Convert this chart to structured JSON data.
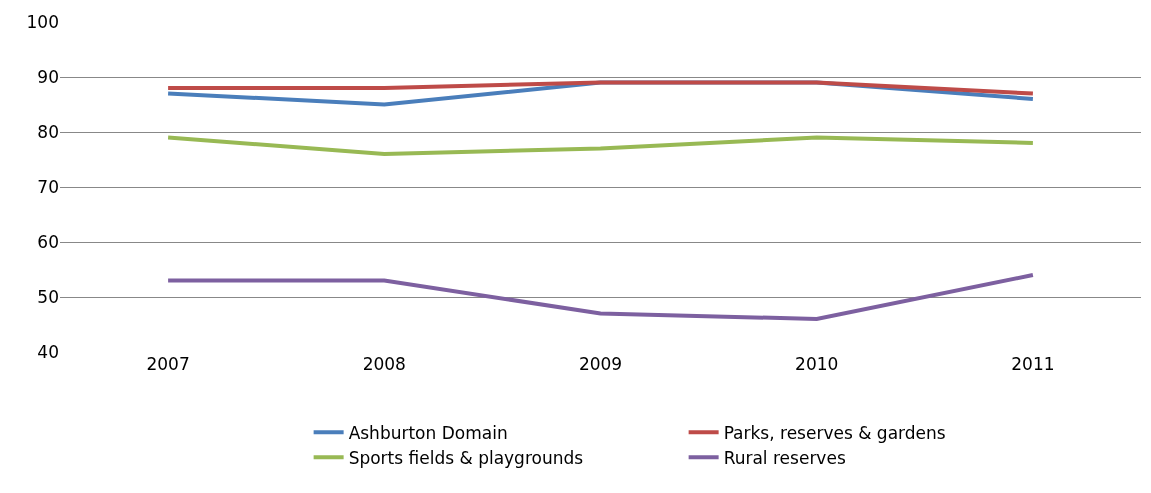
{
  "chart_data": {
    "type": "line",
    "categories": [
      "2007",
      "2008",
      "2009",
      "2010",
      "2011"
    ],
    "series": [
      {
        "name": "Ashburton Domain",
        "color": "#4a7ebb",
        "values": [
          87,
          85,
          89,
          89,
          86
        ]
      },
      {
        "name": "Parks, reserves & gardens",
        "color": "#be4b48",
        "values": [
          88,
          88,
          89,
          89,
          87
        ]
      },
      {
        "name": "Sports fields & playgrounds",
        "color": "#98b954",
        "values": [
          79,
          76,
          77,
          79,
          78
        ]
      },
      {
        "name": "Rural reserves",
        "color": "#7d60a0",
        "values": [
          53,
          53,
          47,
          46,
          54
        ]
      }
    ],
    "ylim": [
      40,
      100
    ],
    "yticks": [
      40,
      50,
      60,
      70,
      80,
      90,
      100
    ],
    "grid": "y",
    "legend": "bottom",
    "marker": "none",
    "line_style": "solid"
  }
}
